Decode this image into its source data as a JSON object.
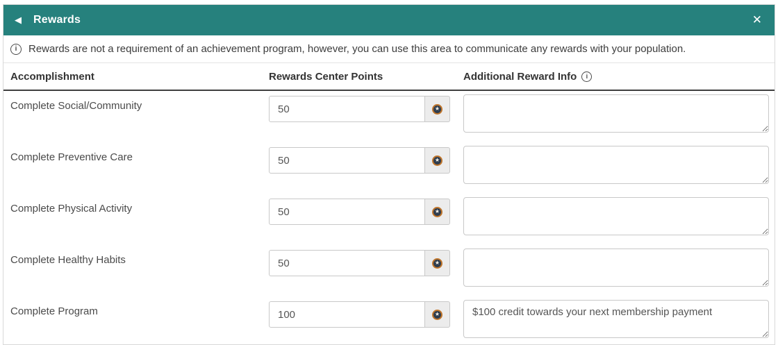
{
  "header": {
    "title": "Rewards",
    "back_icon": "◀",
    "close_icon": "✕"
  },
  "banner": {
    "info_icon": "i",
    "text": "Rewards are not a requirement of an achievement program, however, you can use this area to communicate any rewards with your population."
  },
  "columns": {
    "accomplishment": "Accomplishment",
    "points": "Rewards Center Points",
    "info": "Additional Reward Info",
    "info_icon": "i"
  },
  "icons": {
    "coin_star": "★"
  },
  "colors": {
    "header_bg": "#26817D",
    "header_text": "#FFFFFF",
    "divider_dark": "#3E3E3E",
    "coin_ring": "#C0762C",
    "coin_fill": "#2E3D4F",
    "addon_bg": "#ECECEC"
  },
  "rows": [
    {
      "accomplishment": "Complete Social/Community",
      "points": "50",
      "info": ""
    },
    {
      "accomplishment": "Complete Preventive Care",
      "points": "50",
      "info": ""
    },
    {
      "accomplishment": "Complete Physical Activity",
      "points": "50",
      "info": ""
    },
    {
      "accomplishment": "Complete Healthy Habits",
      "points": "50",
      "info": ""
    },
    {
      "accomplishment": "Complete Program",
      "points": "100",
      "info": "$100 credit towards your next membership payment"
    }
  ]
}
